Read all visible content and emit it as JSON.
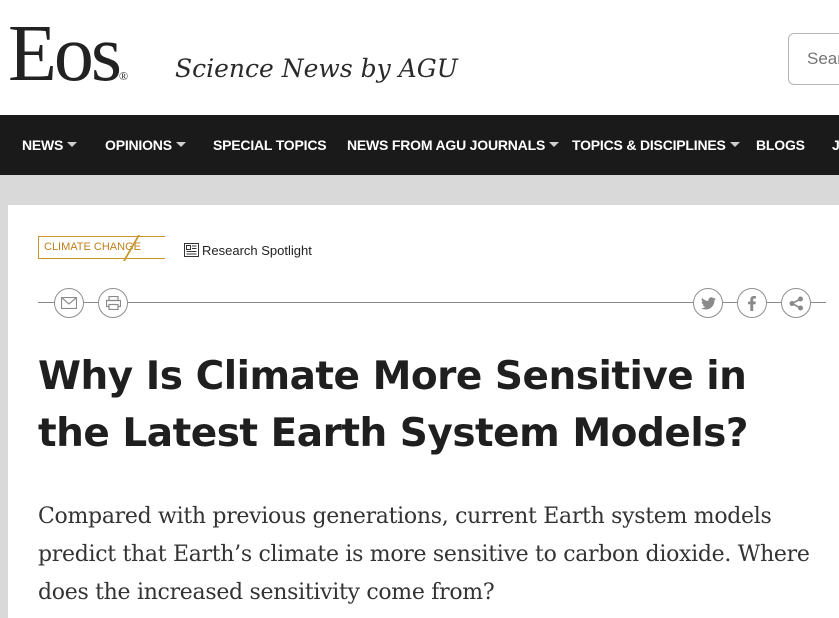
{
  "brand": {
    "logo_text": "Eos",
    "registered_mark": "®",
    "tagline": "Science News by AGU"
  },
  "search": {
    "placeholder": "Search"
  },
  "nav": {
    "items": [
      {
        "label": "NEWS",
        "has_dropdown": true
      },
      {
        "label": "OPINIONS",
        "has_dropdown": true
      },
      {
        "label": "SPECIAL TOPICS",
        "has_dropdown": false
      },
      {
        "label": "NEWS FROM AGU JOURNALS",
        "has_dropdown": true
      },
      {
        "label": "TOPICS & DISCIPLINES",
        "has_dropdown": true
      },
      {
        "label": "BLOGS",
        "has_dropdown": false
      },
      {
        "label": "J",
        "has_dropdown": false
      }
    ]
  },
  "article": {
    "category": "CLIMATE CHANGE",
    "type_label": "Research Spotlight",
    "title": "Why Is Climate More Sensitive in the Latest Earth System Models?",
    "dek": "Compared with previous generations, current Earth system models predict that Earth’s climate is more sensitive to carbon dioxide. Where does the increased sensitivity come from?"
  },
  "share": {
    "left": [
      {
        "icon": "email-icon"
      },
      {
        "icon": "print-icon"
      }
    ],
    "right": [
      {
        "icon": "twitter-icon"
      },
      {
        "icon": "facebook-icon"
      },
      {
        "icon": "share-icon"
      }
    ]
  },
  "colors": {
    "nav_bg": "#1a1a1a",
    "accent_tag": "#c07f1b",
    "page_bg": "#d9d9d9"
  }
}
